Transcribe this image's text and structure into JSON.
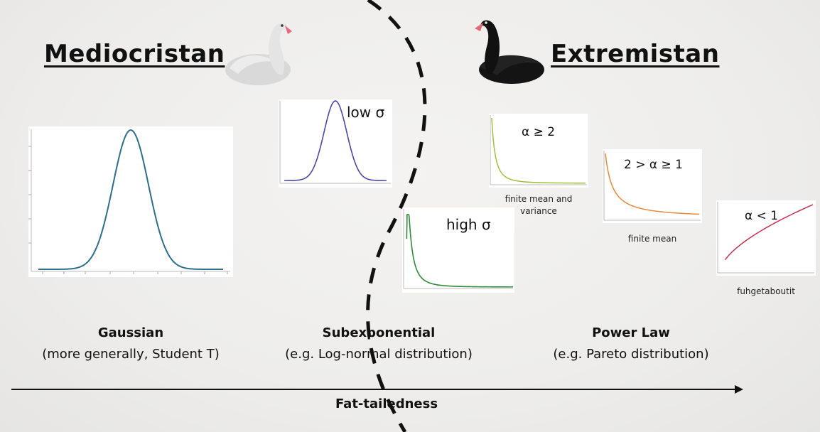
{
  "headings": {
    "left": "Mediocristan",
    "right": "Extremistan"
  },
  "plots": {
    "gaussian": {
      "color": "#2e6f8e"
    },
    "low_sigma": {
      "label": "low σ",
      "color": "#4a48a8"
    },
    "high_sigma": {
      "label": "high σ",
      "color": "#2f8a3a"
    },
    "alpha_ge_2": {
      "label": "α ≥ 2",
      "caption": "finite mean and variance",
      "color": "#9dc23a"
    },
    "alpha_1_2": {
      "label": "2 > α ≥ 1",
      "caption": "finite mean",
      "color": "#e8893a"
    },
    "alpha_lt_1": {
      "label": "α < 1",
      "caption": "fuhgetaboutit",
      "color": "#c8324a"
    }
  },
  "categories": [
    {
      "title": "Gaussian",
      "subtitle": "(more generally, Student T)"
    },
    {
      "title": "Subexponential",
      "subtitle": "(e.g. Log-normal distribution)"
    },
    {
      "title": "Power Law",
      "subtitle": "(e.g. Pareto distribution)"
    }
  ],
  "axis": {
    "label": "Fat-tailedness"
  },
  "icons": {
    "white_swan": "white-swan-icon",
    "black_swan": "black-swan-icon"
  }
}
